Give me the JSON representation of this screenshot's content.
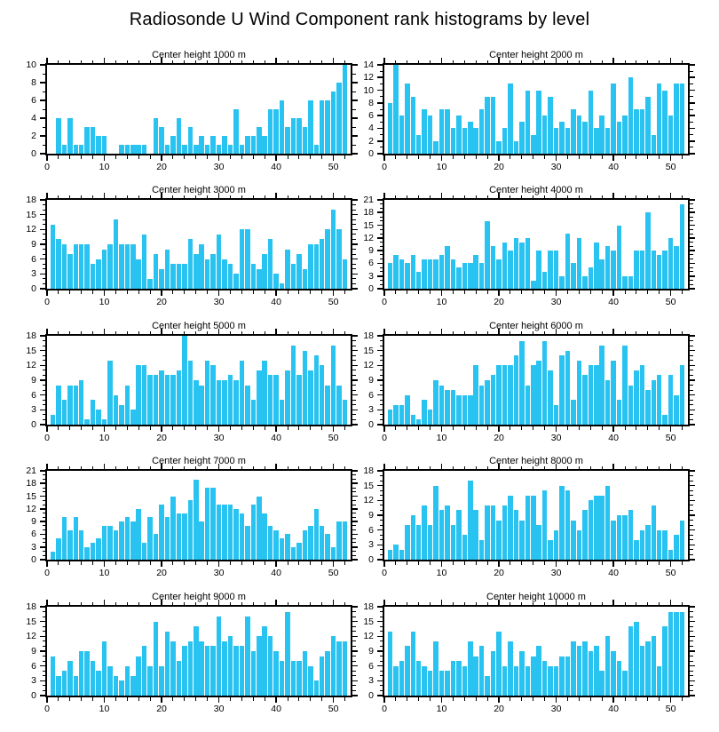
{
  "title": "Radiosonde U Wind Component rank histograms by level",
  "chart_data": {
    "type": "bar",
    "description": "Grid of 10 rank histograms (5 rows x 2 columns), one per height level",
    "bar_color": "#29C3F1",
    "axis_color": "#000000",
    "bins": 52,
    "x_range": [
      0,
      53
    ],
    "x_ticks": [
      0,
      10,
      20,
      30,
      40,
      50
    ],
    "x_minor_step": 2,
    "grid": "off",
    "panels": [
      {
        "title": "Center height 1000 m",
        "ylim": [
          0,
          10
        ],
        "ystep": 2,
        "values": [
          0,
          4,
          1,
          4,
          1,
          1,
          3,
          3,
          2,
          2,
          0,
          0,
          1,
          1,
          1,
          1,
          1,
          0,
          4,
          3,
          1,
          2,
          4,
          1,
          3,
          1,
          2,
          1,
          2,
          1,
          2,
          1,
          5,
          1,
          2,
          2,
          3,
          2,
          5,
          5,
          6,
          3,
          4,
          4,
          3,
          6,
          1,
          6,
          6,
          7,
          8,
          10
        ]
      },
      {
        "title": "Center height 2000 m",
        "ylim": [
          0,
          14
        ],
        "ystep": 2,
        "values": [
          8,
          14,
          6,
          11,
          9,
          3,
          7,
          6,
          2,
          7,
          7,
          4,
          6,
          4,
          5,
          4,
          7,
          9,
          9,
          2,
          4,
          11,
          2,
          5,
          10,
          3,
          10,
          6,
          9,
          4,
          5,
          4,
          7,
          6,
          5,
          10,
          4,
          6,
          4,
          11,
          5,
          6,
          12,
          7,
          7,
          9,
          3,
          11,
          10,
          6,
          11,
          11
        ]
      },
      {
        "title": "Center height 3000 m",
        "ylim": [
          0,
          18
        ],
        "ystep": 3,
        "values": [
          13,
          10,
          9,
          7,
          9,
          9,
          9,
          5,
          6,
          8,
          9,
          14,
          9,
          9,
          9,
          6,
          11,
          2,
          7,
          4,
          8,
          5,
          5,
          5,
          10,
          7,
          9,
          6,
          7,
          11,
          6,
          5,
          3,
          12,
          12,
          5,
          4,
          7,
          10,
          3,
          1,
          8,
          5,
          7,
          4,
          9,
          9,
          10,
          12,
          16,
          12,
          6
        ]
      },
      {
        "title": "Center height 4000 m",
        "ylim": [
          0,
          21
        ],
        "ystep": 3,
        "values": [
          6,
          8,
          7,
          6,
          8,
          4,
          7,
          7,
          7,
          8,
          10,
          7,
          5,
          6,
          6,
          8,
          6,
          16,
          10,
          7,
          11,
          9,
          12,
          11,
          12,
          2,
          9,
          4,
          9,
          9,
          3,
          13,
          6,
          12,
          3,
          5,
          11,
          7,
          10,
          9,
          15,
          3,
          3,
          9,
          9,
          18,
          9,
          8,
          9,
          12,
          10,
          20
        ]
      },
      {
        "title": "Center height 5000 m",
        "ylim": [
          0,
          18
        ],
        "ystep": 3,
        "values": [
          2,
          8,
          5,
          8,
          8,
          9,
          1,
          5,
          3,
          1,
          13,
          6,
          4,
          8,
          3,
          12,
          12,
          10,
          10,
          11,
          10,
          10,
          11,
          18,
          13,
          9,
          8,
          13,
          12,
          9,
          9,
          10,
          9,
          13,
          8,
          5,
          11,
          13,
          10,
          10,
          5,
          11,
          16,
          10,
          15,
          11,
          14,
          12,
          8,
          16,
          8,
          5
        ]
      },
      {
        "title": "Center height 6000 m",
        "ylim": [
          0,
          18
        ],
        "ystep": 3,
        "values": [
          3,
          4,
          4,
          6,
          2,
          1,
          5,
          3,
          9,
          8,
          7,
          7,
          6,
          6,
          6,
          12,
          8,
          9,
          10,
          12,
          12,
          12,
          14,
          17,
          8,
          12,
          13,
          17,
          11,
          4,
          14,
          15,
          5,
          13,
          10,
          12,
          12,
          16,
          9,
          13,
          5,
          16,
          8,
          11,
          12,
          7,
          9,
          10,
          2,
          10,
          6,
          12
        ]
      },
      {
        "title": "Center height 7000 m",
        "ylim": [
          0,
          21
        ],
        "ystep": 3,
        "values": [
          2,
          5,
          10,
          7,
          10,
          7,
          3,
          4,
          5,
          8,
          8,
          7,
          9,
          10,
          9,
          12,
          4,
          10,
          6,
          13,
          10,
          15,
          11,
          11,
          14,
          19,
          9,
          17,
          17,
          13,
          13,
          13,
          12,
          11,
          8,
          13,
          15,
          11,
          8,
          7,
          5,
          6,
          3,
          4,
          7,
          8,
          12,
          8,
          6,
          3,
          9,
          9
        ]
      },
      {
        "title": "Center height 8000 m",
        "ylim": [
          0,
          18
        ],
        "ystep": 3,
        "values": [
          2,
          3,
          2,
          7,
          9,
          7,
          11,
          7,
          15,
          10,
          11,
          7,
          10,
          5,
          16,
          10,
          4,
          11,
          11,
          8,
          11,
          13,
          10,
          8,
          13,
          13,
          7,
          14,
          4,
          6,
          15,
          14,
          8,
          6,
          10,
          12,
          13,
          13,
          15,
          8,
          9,
          9,
          10,
          4,
          6,
          7,
          11,
          6,
          6,
          2,
          5,
          8
        ]
      },
      {
        "title": "Center height 9000 m",
        "ylim": [
          0,
          18
        ],
        "ystep": 3,
        "values": [
          8,
          4,
          5,
          7,
          4,
          9,
          9,
          7,
          5,
          11,
          6,
          4,
          3,
          6,
          4,
          8,
          10,
          6,
          15,
          6,
          13,
          11,
          7,
          10,
          11,
          14,
          11,
          10,
          10,
          16,
          11,
          12,
          10,
          10,
          16,
          9,
          12,
          14,
          12,
          9,
          7,
          17,
          7,
          7,
          9,
          6,
          3,
          8,
          9,
          12,
          11,
          11
        ]
      },
      {
        "title": "Center height 10000 m",
        "ylim": [
          0,
          18
        ],
        "ystep": 3,
        "values": [
          13,
          6,
          7,
          10,
          13,
          7,
          6,
          5,
          11,
          5,
          5,
          7,
          7,
          6,
          11,
          8,
          10,
          4,
          9,
          13,
          6,
          11,
          6,
          9,
          6,
          8,
          10,
          7,
          6,
          6,
          8,
          8,
          11,
          10,
          11,
          9,
          10,
          5,
          12,
          9,
          7,
          5,
          14,
          15,
          10,
          11,
          12,
          6,
          14,
          17,
          17,
          17
        ]
      }
    ]
  }
}
